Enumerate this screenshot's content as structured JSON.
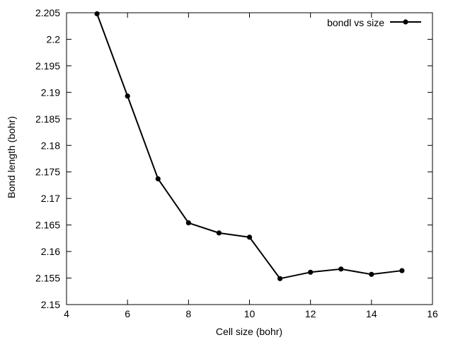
{
  "chart_data": {
    "type": "line",
    "xlabel": "Cell size (bohr)",
    "ylabel": "Bond length (bohr)",
    "xlim": [
      4,
      16
    ],
    "ylim": [
      2.15,
      2.205
    ],
    "xticks": [
      4,
      6,
      8,
      10,
      12,
      14,
      16
    ],
    "xtick_labels": [
      "4",
      "6",
      "8",
      "10",
      "12",
      "14",
      "16"
    ],
    "yticks": [
      2.15,
      2.155,
      2.16,
      2.165,
      2.17,
      2.175,
      2.18,
      2.185,
      2.19,
      2.195,
      2.2,
      2.205
    ],
    "ytick_labels": [
      "2.15",
      "2.155",
      "2.16",
      "2.165",
      "2.17",
      "2.175",
      "2.18",
      "2.185",
      "2.19",
      "2.195",
      "2.2",
      "2.205"
    ],
    "legend_position": "top-right",
    "grid": false,
    "series": [
      {
        "name": "bondl vs size",
        "color": "#000000",
        "marker": "circle",
        "x": [
          5,
          6,
          7,
          8,
          9,
          10,
          11,
          12,
          13,
          14,
          15
        ],
        "y": [
          2.2048,
          2.1893,
          2.1737,
          2.1654,
          2.1635,
          2.1627,
          2.1549,
          2.1561,
          2.1567,
          2.1557,
          2.1564
        ]
      }
    ]
  }
}
